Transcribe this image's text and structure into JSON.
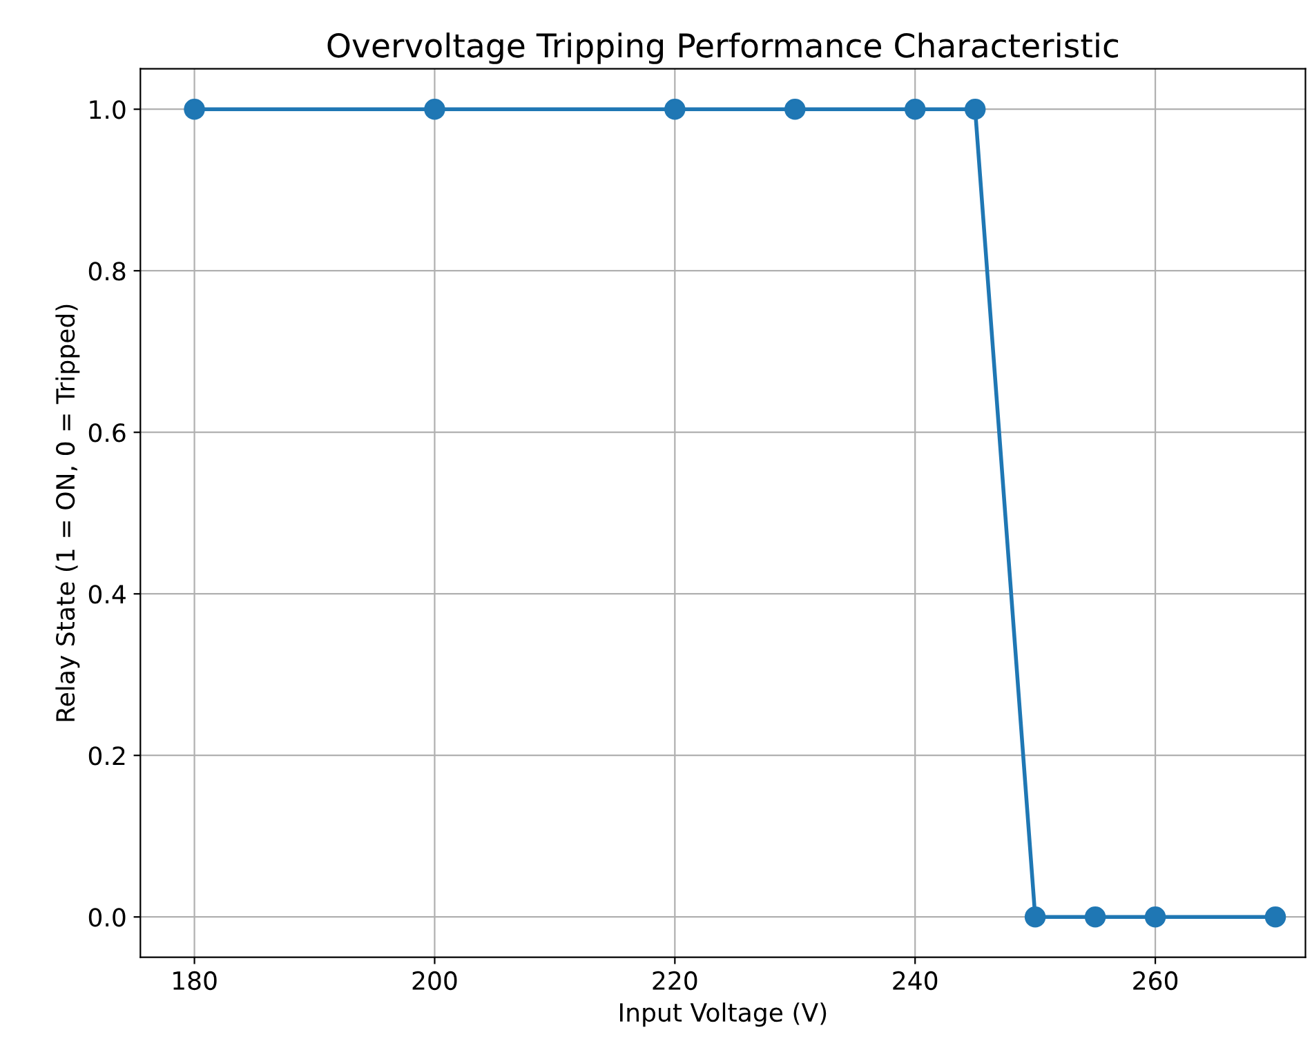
{
  "chart_data": {
    "type": "line",
    "title": "Overvoltage Tripping Performance Characteristic",
    "xlabel": "Input Voltage (V)",
    "ylabel": "Relay State (1 = ON, 0 = Tripped)",
    "x": [
      180,
      200,
      220,
      230,
      240,
      245,
      250,
      255,
      260,
      270
    ],
    "series": [
      {
        "color": "#1f77b4",
        "values": [
          1,
          1,
          1,
          1,
          1,
          1,
          0,
          0,
          0,
          0
        ]
      }
    ],
    "xlim": [
      175.5,
      272.5
    ],
    "ylim": [
      -0.05,
      1.05
    ],
    "xticks": [
      180,
      200,
      220,
      240,
      260
    ],
    "yticks": [
      {
        "value": 0,
        "label": "0.0"
      },
      {
        "value": 0.2,
        "label": "0.2"
      },
      {
        "value": 0.4,
        "label": "0.4"
      },
      {
        "value": 0.6,
        "label": "0.6"
      },
      {
        "value": 0.8,
        "label": "0.8"
      },
      {
        "value": 1,
        "label": "1.0"
      }
    ],
    "grid": true,
    "marker": "circle",
    "line_style": "solid"
  }
}
